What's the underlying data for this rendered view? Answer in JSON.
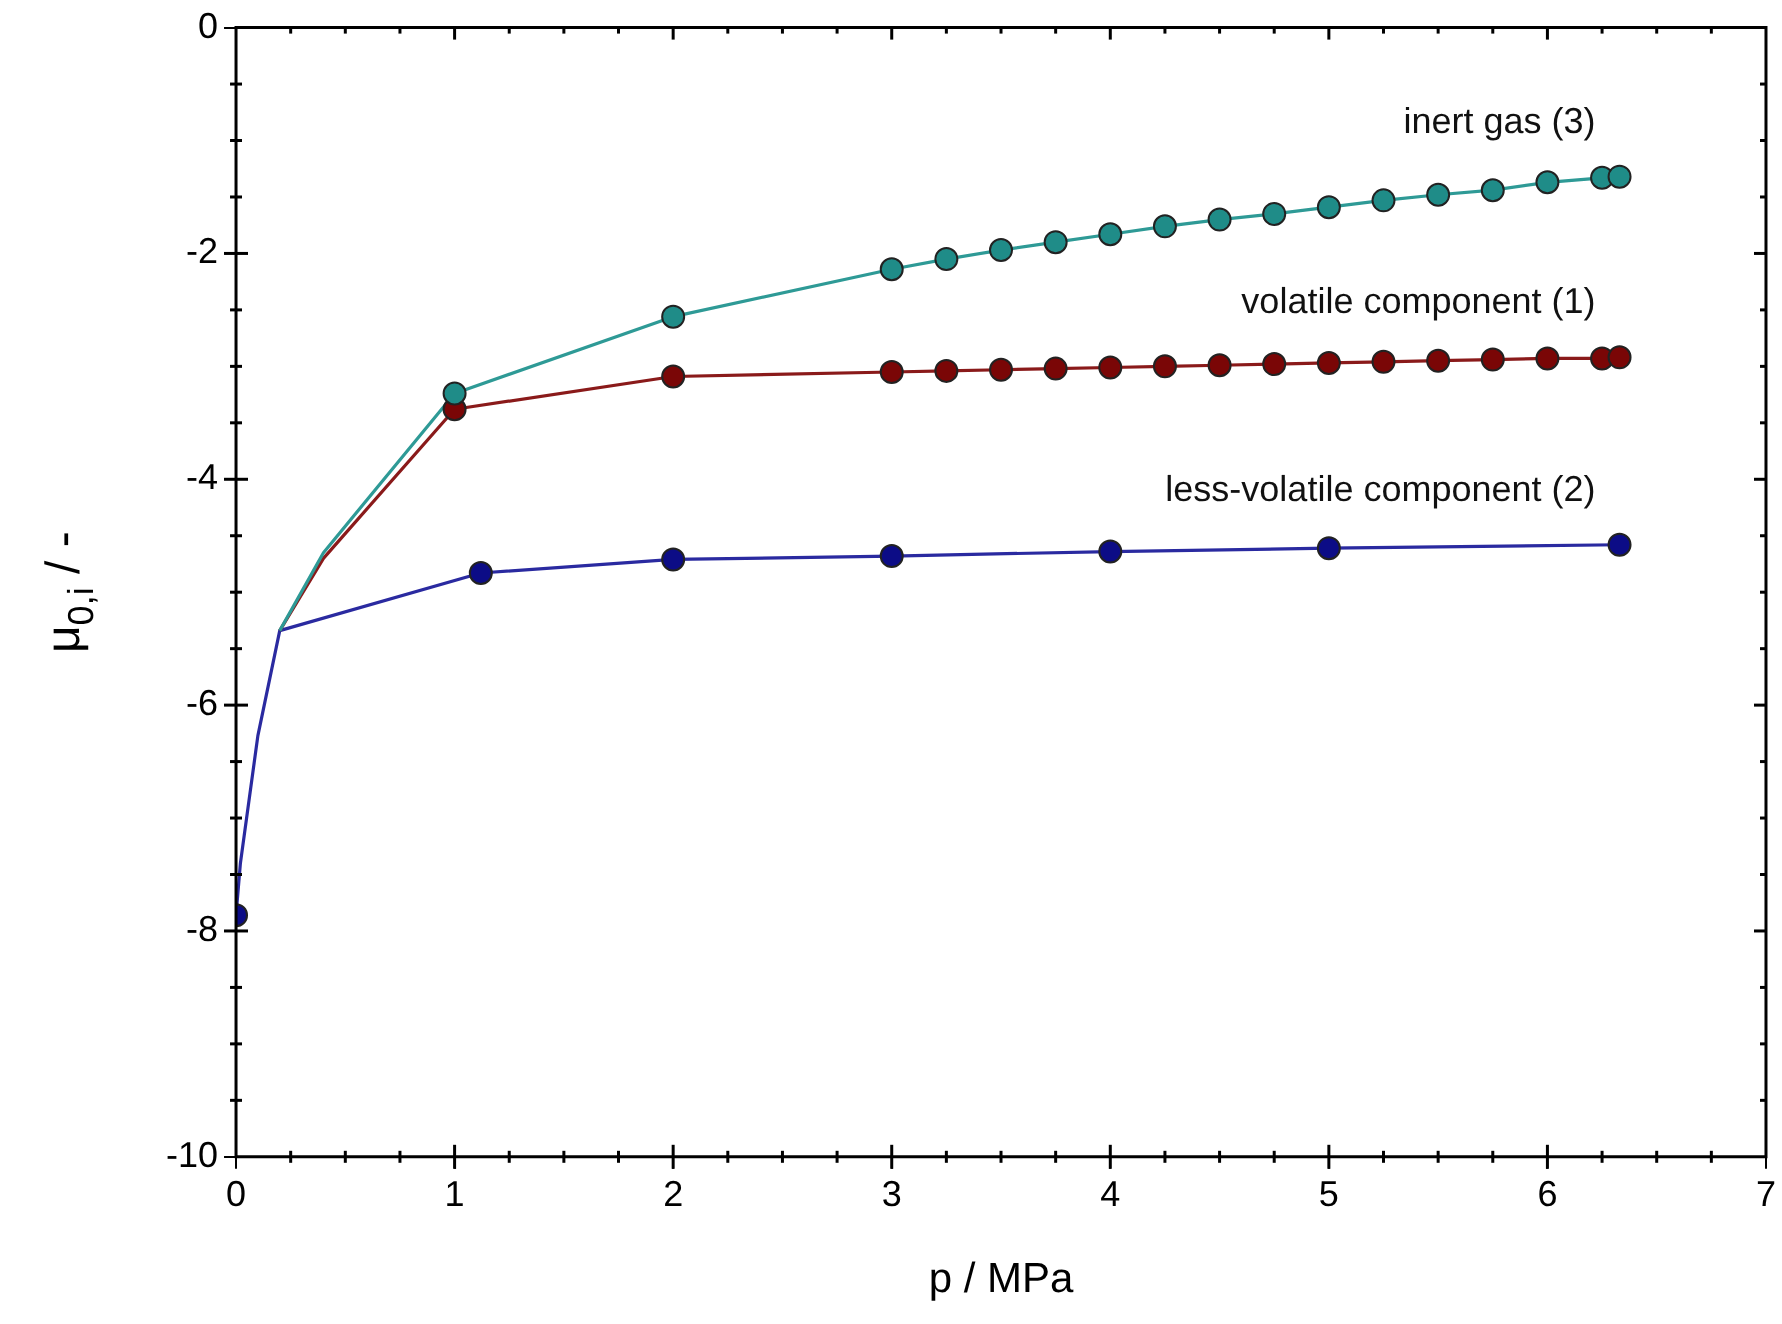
{
  "chart_data": {
    "type": "line",
    "xlabel": "p / MPa",
    "ylabel": "μ$_{0,i}$ / -",
    "xlim": [
      0,
      7
    ],
    "xticks": [
      0,
      1,
      2,
      3,
      4,
      5,
      6,
      7
    ],
    "ylim": [
      -10,
      0
    ],
    "yticks": [
      -10,
      -8,
      -6,
      -4,
      -2,
      0
    ],
    "grid": false,
    "legend": false,
    "series": [
      {
        "name": "inert gas (3)",
        "marker": "none",
        "color": "#2e9a96",
        "x": [
          0.2,
          0.4,
          1,
          2,
          3,
          3.25,
          3.5,
          3.75,
          4,
          4.25,
          4.5,
          4.75,
          5,
          5.25,
          5.5,
          5.75,
          6,
          6.25,
          6.33
        ],
        "values": [
          -5.34,
          -4.65,
          -3.24,
          -2.56,
          -2.14,
          -2.05,
          -1.97,
          -1.9,
          -1.83,
          -1.76,
          -1.7,
          -1.65,
          -1.59,
          -1.53,
          -1.48,
          -1.44,
          -1.37,
          -1.33,
          -1.32
        ]
      },
      {
        "type": "scatter",
        "marker": "circle",
        "color": "#1f8c88",
        "x": [
          1,
          2,
          3,
          3.25,
          3.5,
          3.75,
          4,
          4.25,
          4.5,
          4.75,
          5,
          5.25,
          5.5,
          5.75,
          6,
          6.25,
          6.33
        ],
        "values": [
          -3.24,
          -2.56,
          -2.14,
          -2.05,
          -1.97,
          -1.9,
          -1.83,
          -1.76,
          -1.7,
          -1.65,
          -1.59,
          -1.53,
          -1.48,
          -1.44,
          -1.37,
          -1.33,
          -1.32
        ]
      },
      {
        "name": "volatile component (1)",
        "marker": "none",
        "color": "#8a1a1a",
        "x": [
          0.2,
          0.4,
          1,
          2,
          3,
          3.25,
          3.5,
          3.75,
          4,
          4.25,
          4.5,
          4.75,
          5,
          5.25,
          5.5,
          5.75,
          6,
          6.25,
          6.33
        ],
        "values": [
          -5.34,
          -4.7,
          -3.38,
          -3.09,
          -3.05,
          -3.04,
          -3.03,
          -3.02,
          -3.01,
          -3.0,
          -2.99,
          -2.98,
          -2.97,
          -2.96,
          -2.95,
          -2.94,
          -2.93,
          -2.93,
          -2.92
        ]
      },
      {
        "type": "scatter",
        "marker": "circle",
        "color": "#7a0606",
        "x": [
          1,
          2,
          3,
          3.25,
          3.5,
          3.75,
          4,
          4.25,
          4.5,
          4.75,
          5,
          5.25,
          5.5,
          5.75,
          6,
          6.25,
          6.33
        ],
        "values": [
          -3.38,
          -3.09,
          -3.05,
          -3.04,
          -3.03,
          -3.02,
          -3.01,
          -3.0,
          -2.99,
          -2.98,
          -2.97,
          -2.96,
          -2.95,
          -2.94,
          -2.93,
          -2.93,
          -2.92
        ]
      },
      {
        "name": "less-volatile component (2)",
        "marker": "none",
        "color": "#2a2aa0",
        "x": [
          0,
          0.02,
          0.1,
          0.2,
          1.12,
          2,
          3,
          4,
          5,
          6.33
        ],
        "values": [
          -7.86,
          -7.4,
          -6.27,
          -5.34,
          -4.83,
          -4.71,
          -4.68,
          -4.64,
          -4.61,
          -4.58
        ]
      },
      {
        "type": "scatter",
        "marker": "circle",
        "color": "#0c0c86",
        "x": [
          0,
          1.12,
          2,
          3,
          4,
          5,
          6.33
        ],
        "values": [
          -7.86,
          -4.83,
          -4.71,
          -4.68,
          -4.64,
          -4.61,
          -4.58
        ]
      }
    ]
  }
}
